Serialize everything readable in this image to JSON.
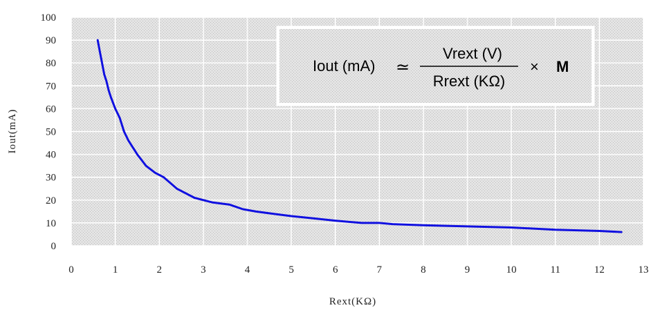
{
  "chart_data": {
    "type": "line",
    "title": "",
    "xlabel": "Rext(KΩ)",
    "ylabel": "Iout(mA)",
    "xlim": [
      0,
      13
    ],
    "ylim": [
      0,
      100
    ],
    "x_ticks": [
      "0",
      "1",
      "2",
      "3",
      "4",
      "5",
      "6",
      "7",
      "8",
      "9",
      "10",
      "11",
      "12",
      "13"
    ],
    "y_ticks": [
      "0",
      "10",
      "20",
      "30",
      "40",
      "50",
      "60",
      "70",
      "80",
      "90",
      "100"
    ],
    "grid": true,
    "line_color": "#1010e0",
    "plot_background": "#d9d9d9",
    "grid_color": "#ffffff",
    "series": [
      {
        "x": [
          0.6,
          0.65,
          0.7,
          0.75,
          0.8,
          0.85,
          0.9,
          1.0,
          1.1,
          1.2,
          1.3,
          1.4,
          1.5,
          1.7,
          1.9,
          2.1,
          2.4,
          2.8,
          3.2,
          3.6,
          3.9,
          4.2,
          4.6,
          5.0,
          5.5,
          6.0,
          6.6,
          7.0,
          7.3,
          8.0,
          9.0,
          10.0,
          11.0,
          12.0,
          12.5
        ],
        "y": [
          90,
          85,
          80,
          75,
          72,
          68,
          65,
          60,
          56,
          50,
          46,
          43,
          40,
          35,
          32,
          30,
          25,
          21,
          19,
          18,
          16,
          15,
          14,
          13,
          12,
          11,
          10,
          10,
          9.5,
          9,
          8.5,
          8,
          7,
          6.5,
          6
        ]
      }
    ],
    "formula": {
      "lhs": "Iout (mA)",
      "approx": "≃",
      "numerator": "Vrext (V)",
      "denominator": "Rrext (KΩ)",
      "times": "×",
      "constant": "M"
    }
  }
}
